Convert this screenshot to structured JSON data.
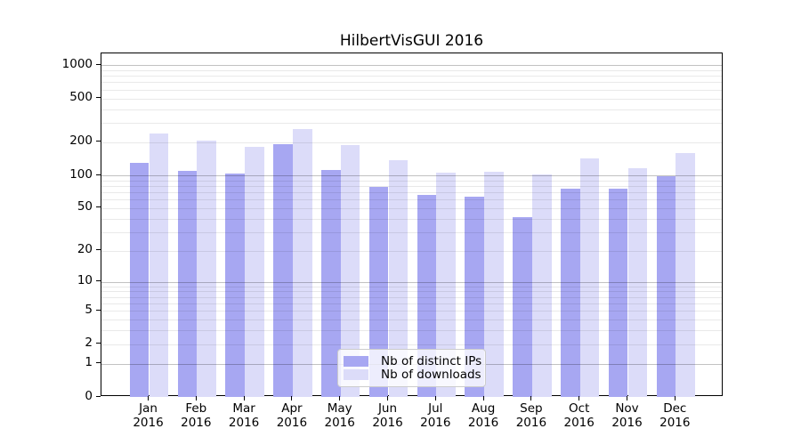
{
  "title": "HilbertVisGUI 2016",
  "chart_data": {
    "type": "bar",
    "title": "HilbertVisGUI 2016",
    "categories": [
      "Jan",
      "Feb",
      "Mar",
      "Apr",
      "May",
      "Jun",
      "Jul",
      "Aug",
      "Sep",
      "Oct",
      "Nov",
      "Dec"
    ],
    "x_year": "2016",
    "series": [
      {
        "name": "Nb of distinct IPs",
        "color": "#a7a7f2",
        "values": [
          130,
          109,
          104,
          192,
          112,
          78,
          66,
          64,
          41,
          76,
          76,
          99
        ]
      },
      {
        "name": "Nb of downloads",
        "color": "#dcdcf9",
        "values": [
          241,
          208,
          183,
          264,
          188,
          137,
          105,
          108,
          101,
          144,
          116,
          159
        ]
      }
    ],
    "yscale": "log1p",
    "yticks": [
      0,
      1,
      2,
      5,
      10,
      20,
      50,
      100,
      200,
      500,
      1000
    ],
    "ylim": [
      0,
      1280
    ],
    "xlabel": "",
    "ylabel": "",
    "grid": {
      "on": true,
      "major": [
        1,
        10,
        100,
        1000
      ],
      "minor": [
        2,
        3,
        4,
        5,
        6,
        7,
        8,
        9,
        20,
        30,
        40,
        50,
        60,
        70,
        80,
        90,
        200,
        300,
        400,
        500,
        600,
        700,
        800,
        900
      ]
    },
    "legend_position": "lower-center",
    "colors": {
      "grid_major": "rgba(0,0,0,0.24)",
      "grid_minor": "rgba(0,0,0,0.085)",
      "axis": "#000000",
      "background": "#ffffff"
    }
  }
}
